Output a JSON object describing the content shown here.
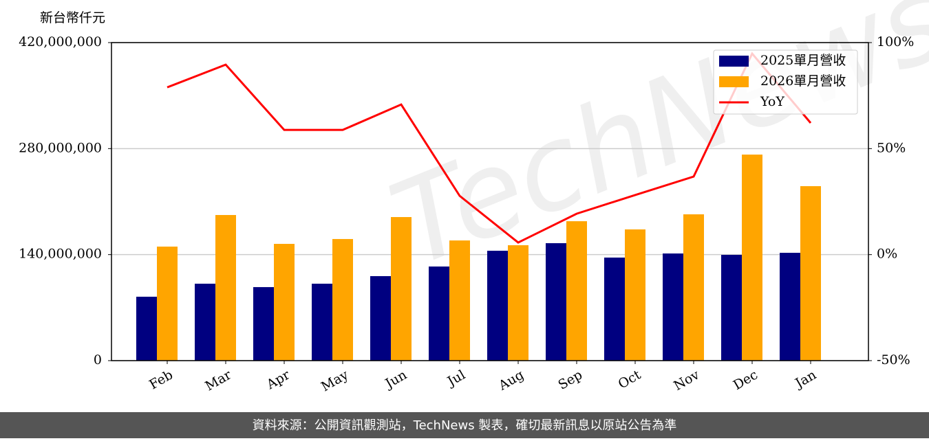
{
  "chart_data": {
    "type": "bar",
    "ylabel": "新台幣仟元",
    "watermark": "TechNews",
    "footer": "資料來源：公開資訊觀測站，TechNews 製表，確切最新訊息以原站公告為準",
    "categories": [
      "Feb",
      "Mar",
      "Apr",
      "May",
      "Jun",
      "Jul",
      "Aug",
      "Sep",
      "Oct",
      "Nov",
      "Dec",
      "Jan"
    ],
    "series": [
      {
        "name": "2025單月營收",
        "color": "#000080",
        "values": [
          84400000,
          101600000,
          97100000,
          101600000,
          111600000,
          124300000,
          145100000,
          155100000,
          136100000,
          141500000,
          139700000,
          142400000
        ]
      },
      {
        "name": "2026單月營收",
        "color": "#ffa500",
        "values": [
          150600000,
          192300000,
          154200000,
          160600000,
          189600000,
          158700000,
          152400000,
          184100000,
          173300000,
          193200000,
          272100000,
          230400000
        ]
      },
      {
        "name": "YoY",
        "type": "line",
        "axis": "y2",
        "color": "#ff0000",
        "values": [
          78.9,
          89.6,
          58.8,
          58.8,
          70.8,
          27.7,
          5.7,
          19.3,
          28.1,
          36.8,
          94.8,
          62.1
        ]
      }
    ],
    "ylim": [
      0,
      420000000
    ],
    "yticks": [
      0,
      {
        "value": 140000000,
        "label": "140,000,000"
      },
      {
        "value": 280000000,
        "label": "280,000,000"
      },
      {
        "value": 420000000,
        "label": "420,000,000"
      }
    ],
    "y2lim": [
      -50,
      100
    ],
    "y2ticks": [
      {
        "value": -50,
        "label": "-50%"
      },
      {
        "value": 0,
        "label": "0%"
      },
      {
        "value": 50,
        "label": "50%"
      },
      {
        "value": 100,
        "label": "100%"
      }
    ],
    "grid": true,
    "legend": "upper right"
  }
}
